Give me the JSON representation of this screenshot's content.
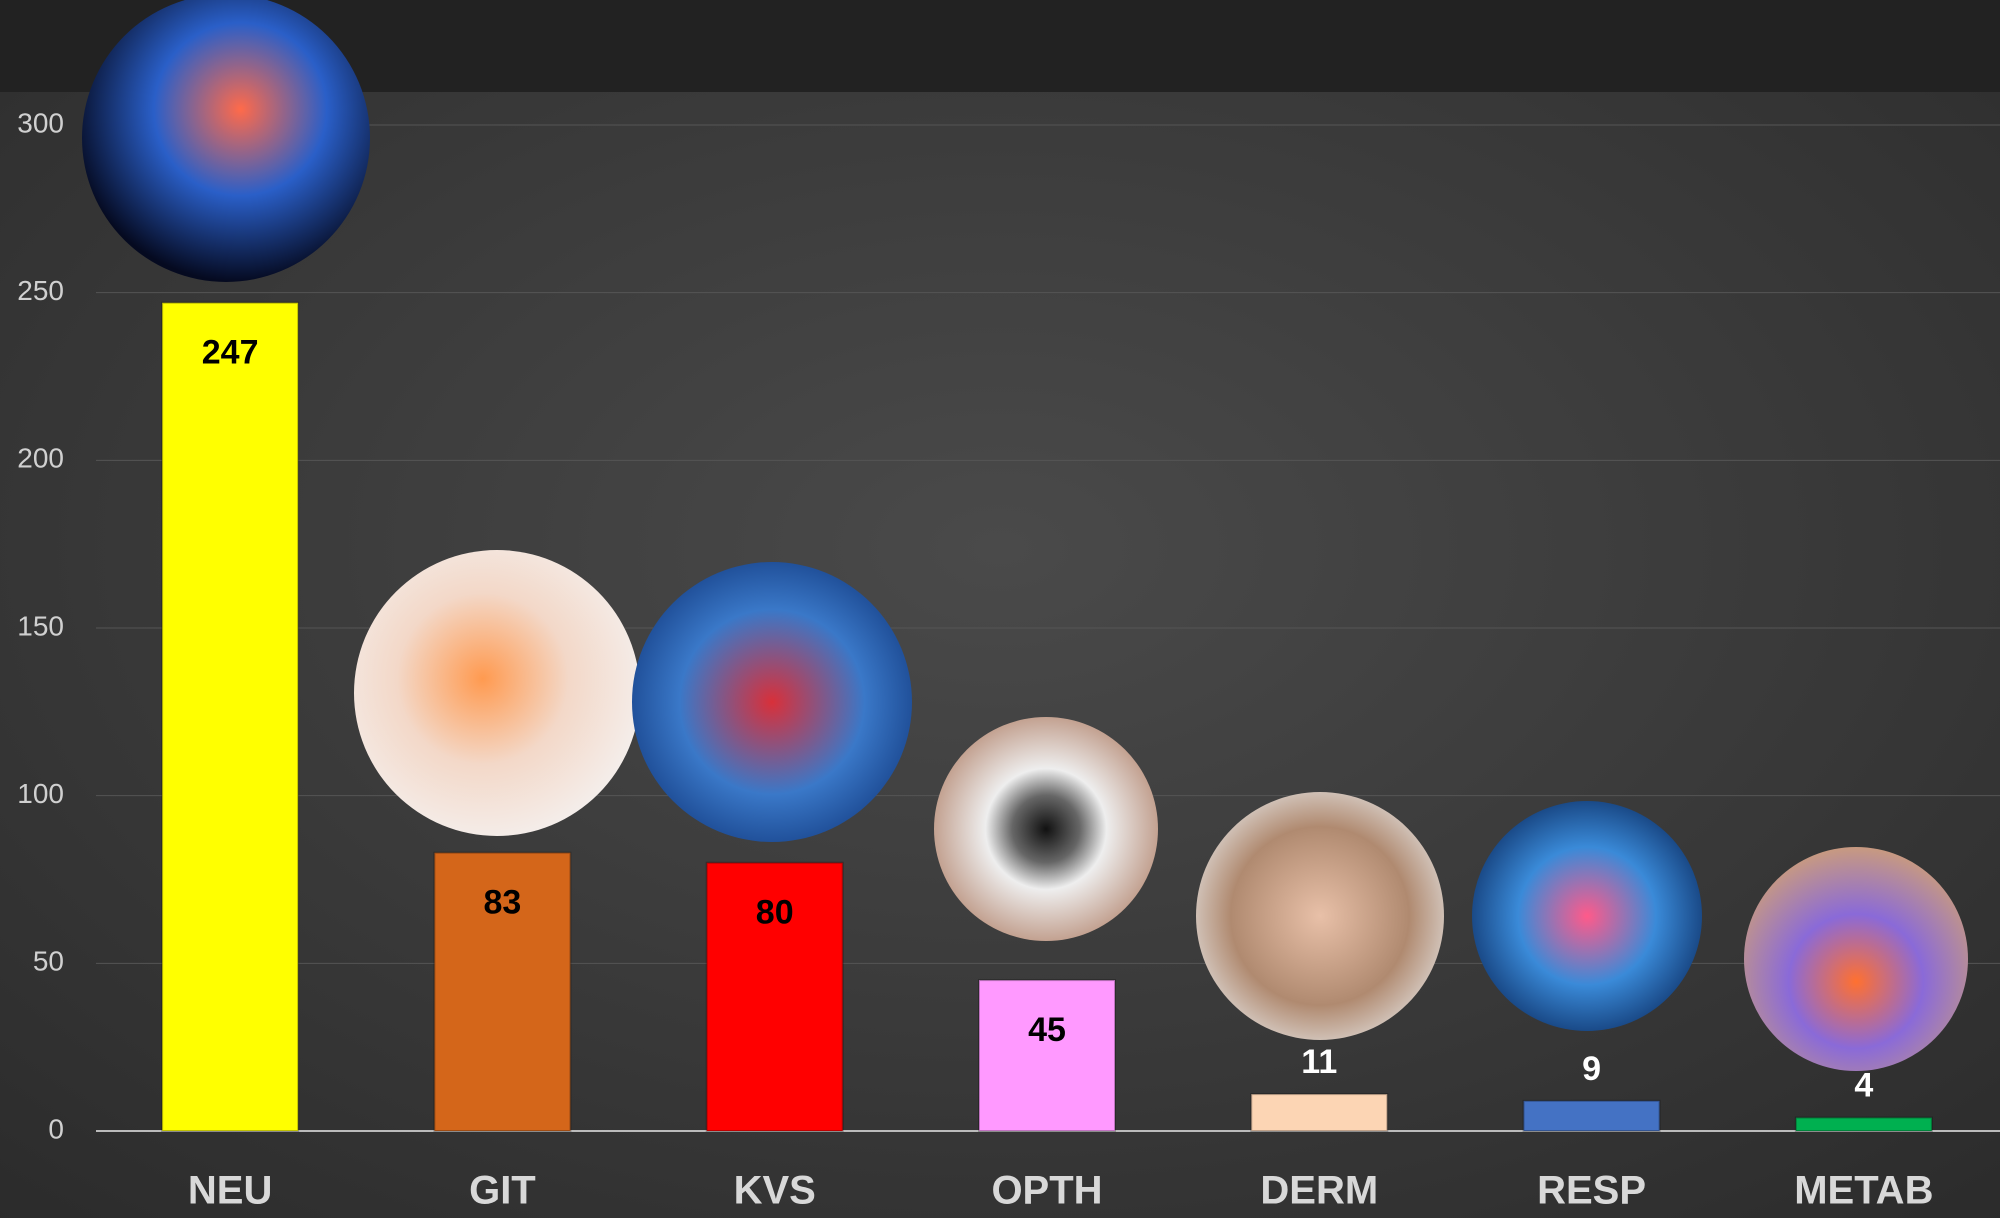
{
  "chart_data": {
    "type": "bar",
    "categories": [
      "NEU",
      "GIT",
      "KVS",
      "OPTH",
      "DERM",
      "RESP",
      "METAB"
    ],
    "values": [
      247,
      83,
      80,
      45,
      11,
      9,
      4
    ],
    "colors": [
      "#ffff00",
      "#d4661a",
      "#ff0000",
      "#ff99ff",
      "#fcd5b4",
      "#4472c4",
      "#00b050"
    ],
    "ylim": [
      0,
      300
    ],
    "yticks": [
      0,
      50,
      100,
      150,
      200,
      250,
      300
    ],
    "grid": true
  }
}
